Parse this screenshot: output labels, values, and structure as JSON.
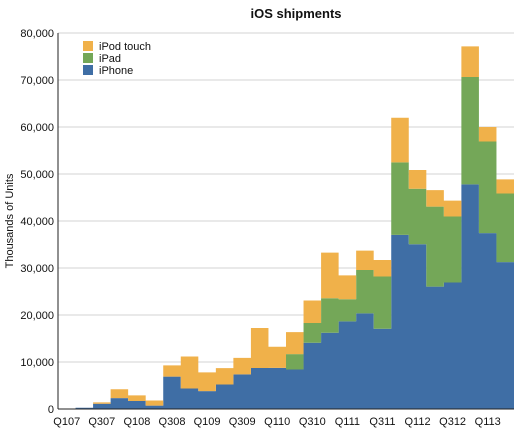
{
  "chart_data": {
    "type": "area",
    "stacked": true,
    "step": true,
    "title": "iOS shipments",
    "xlabel": "",
    "ylabel": "Thousands of Units",
    "ylim": [
      0,
      80000
    ],
    "yticks": [
      "0",
      "10,000",
      "20,000",
      "30,000",
      "40,000",
      "50,000",
      "60,000",
      "70,000",
      "80,000"
    ],
    "grid": true,
    "legend_position": "top-left",
    "categories": [
      "Q107",
      "Q207",
      "Q307",
      "Q407",
      "Q108",
      "Q208",
      "Q308",
      "Q408",
      "Q109",
      "Q209",
      "Q309",
      "Q409",
      "Q110",
      "Q210",
      "Q310",
      "Q410",
      "Q111",
      "Q211",
      "Q311",
      "Q411",
      "Q112",
      "Q212",
      "Q312",
      "Q412",
      "Q113",
      "Q213"
    ],
    "xtick_labels": [
      "Q107",
      "Q307",
      "Q108",
      "Q308",
      "Q109",
      "Q309",
      "Q110",
      "Q310",
      "Q111",
      "Q311",
      "Q112",
      "Q312",
      "Q113"
    ],
    "series": [
      {
        "name": "iPhone",
        "color": "#3f6ea5",
        "values": [
          0,
          270,
          1119,
          2315,
          1703,
          717,
          6892,
          4363,
          3793,
          5208,
          7367,
          8737,
          8752,
          8398,
          14102,
          16235,
          18647,
          20340,
          17070,
          37044,
          35064,
          26028,
          26910,
          47789,
          37430,
          31241
        ]
      },
      {
        "name": "iPad",
        "color": "#74a758",
        "values": [
          0,
          0,
          0,
          0,
          0,
          0,
          0,
          0,
          0,
          0,
          0,
          0,
          0,
          3270,
          4188,
          7331,
          4694,
          9246,
          11123,
          15434,
          11798,
          17042,
          14036,
          22860,
          19477,
          14618
        ]
      },
      {
        "name": "iPod touch",
        "color": "#f0b14a",
        "values": [
          0,
          0,
          300,
          1900,
          1200,
          1100,
          2400,
          6800,
          4000,
          3500,
          3500,
          8500,
          4500,
          4700,
          4800,
          9700,
          5100,
          4100,
          3500,
          9500,
          4000,
          3500,
          3400,
          6500,
          3100,
          3000
        ]
      }
    ]
  }
}
